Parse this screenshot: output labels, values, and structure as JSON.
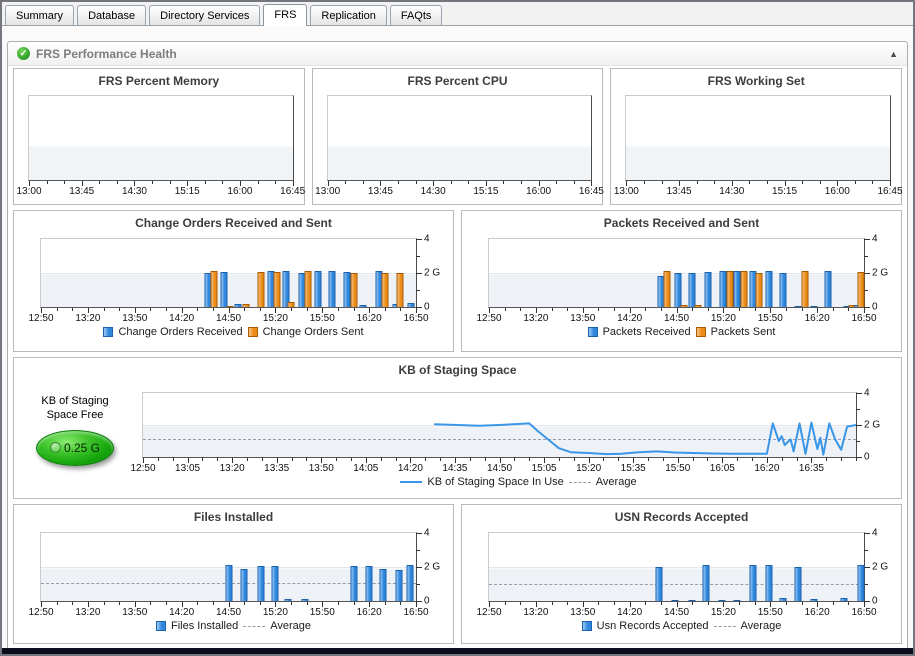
{
  "tabs": [
    {
      "label": "Summary",
      "active": false
    },
    {
      "label": "Database",
      "active": false
    },
    {
      "label": "Directory Services",
      "active": false
    },
    {
      "label": "FRS",
      "active": true
    },
    {
      "label": "Replication",
      "active": false
    },
    {
      "label": "FAQts",
      "active": false
    }
  ],
  "panel": {
    "title": "FRS Performance Health",
    "health_glyph": "✓",
    "collapse_glyph": "▲"
  },
  "staging_gauge": {
    "label_line1": "KB of Staging",
    "label_line2": "Space Free",
    "value": "0.25 G"
  },
  "colors": {
    "bar_blue": "#2e86dd",
    "bar_blue_light": "#9ccaf6",
    "bar_blue_border": "#1b61ae",
    "bar_orange": "#ec8b17",
    "bar_orange_light": "#f6c385",
    "bar_orange_border": "#a85a00",
    "line_blue": "#3a96e8",
    "average_gray": "#9a9aaa"
  },
  "chart_data": [
    {
      "type": "line",
      "title": "FRS Percent Memory",
      "no_data": true,
      "x_start": "13:00",
      "x_end": "16:45",
      "x_minor_step": 15,
      "x_labels": [
        "13:00",
        "13:45",
        "14:30",
        "15:15",
        "16:00",
        "16:45"
      ],
      "series": [],
      "points": []
    },
    {
      "type": "line",
      "title": "FRS Percent CPU",
      "no_data": true,
      "x_start": "13:00",
      "x_end": "16:45",
      "x_minor_step": 15,
      "x_labels": [
        "13:00",
        "13:45",
        "14:30",
        "15:15",
        "16:00",
        "16:45"
      ],
      "series": [],
      "points": []
    },
    {
      "type": "line",
      "title": "FRS Working Set",
      "no_data": true,
      "x_start": "13:00",
      "x_end": "16:45",
      "x_minor_step": 15,
      "x_labels": [
        "13:00",
        "13:45",
        "14:30",
        "15:15",
        "16:00",
        "16:45"
      ],
      "series": [],
      "points": []
    },
    {
      "type": "bar",
      "title": "Change Orders Received and Sent",
      "x_start": "12:50",
      "x_end": "16:50",
      "x_minor_step": 10,
      "x_labels": [
        "12:50",
        "13:20",
        "13:50",
        "14:20",
        "14:50",
        "15:20",
        "15:50",
        "16:20",
        "16:50"
      ],
      "ylim": [
        0,
        4
      ],
      "y_labels": [
        {
          "v": 4,
          "t": "4"
        },
        {
          "v": 2,
          "t": "2 G"
        },
        {
          "v": 0,
          "t": "0"
        }
      ],
      "series": [
        {
          "label": "Change Orders Received",
          "fill": "#2e86dd",
          "fill_light": "#9ccaf6",
          "border": "#1b61ae"
        },
        {
          "label": "Change Orders Sent",
          "fill": "#ec8b17",
          "fill_light": "#f6c385",
          "border": "#a85a00"
        }
      ],
      "bars": [
        [
          "14:37",
          0,
          2.0
        ],
        [
          "14:41",
          1,
          2.1
        ],
        [
          "14:47",
          0,
          2.05
        ],
        [
          "14:51",
          1,
          0.07
        ],
        [
          "14:56",
          0,
          0.15
        ],
        [
          "15:01",
          1,
          0.15
        ],
        [
          "15:11",
          1,
          2.05
        ],
        [
          "15:17",
          0,
          2.1
        ],
        [
          "15:21",
          1,
          2.05
        ],
        [
          "15:27",
          0,
          2.1
        ],
        [
          "15:30",
          1,
          0.3
        ],
        [
          "15:37",
          0,
          2.0
        ],
        [
          "15:41",
          1,
          2.1
        ],
        [
          "15:47",
          0,
          2.1
        ],
        [
          "15:56",
          0,
          2.1
        ],
        [
          "16:06",
          0,
          2.05
        ],
        [
          "16:10",
          1,
          2.0
        ],
        [
          "16:16",
          0,
          0.1
        ],
        [
          "16:26",
          0,
          2.1
        ],
        [
          "16:30",
          1,
          2.0
        ],
        [
          "16:37",
          0,
          0.15
        ],
        [
          "16:40",
          1,
          2.0
        ],
        [
          "16:47",
          0,
          0.25
        ]
      ]
    },
    {
      "type": "bar",
      "title": "Packets Received and Sent",
      "x_start": "12:50",
      "x_end": "16:50",
      "x_minor_step": 10,
      "x_labels": [
        "12:50",
        "13:20",
        "13:50",
        "14:20",
        "14:50",
        "15:20",
        "15:50",
        "16:20",
        "16:50"
      ],
      "ylim": [
        0,
        4
      ],
      "y_labels": [
        {
          "v": 4,
          "t": "4"
        },
        {
          "v": 2,
          "t": "2 G"
        },
        {
          "v": 0,
          "t": "0"
        }
      ],
      "series": [
        {
          "label": "Packets Received",
          "fill": "#2e86dd",
          "fill_light": "#9ccaf6",
          "border": "#1b61ae"
        },
        {
          "label": "Packets Sent",
          "fill": "#ec8b17",
          "fill_light": "#f6c385",
          "border": "#a85a00"
        }
      ],
      "bars": [
        [
          "14:40",
          0,
          1.85
        ],
        [
          "14:44",
          1,
          2.1
        ],
        [
          "14:51",
          0,
          2.0
        ],
        [
          "14:55",
          1,
          0.12
        ],
        [
          "15:00",
          0,
          2.0
        ],
        [
          "15:04",
          1,
          0.12
        ],
        [
          "15:10",
          0,
          2.05
        ],
        [
          "15:20",
          0,
          2.1
        ],
        [
          "15:24",
          1,
          2.1
        ],
        [
          "15:29",
          0,
          2.1
        ],
        [
          "15:33",
          1,
          2.1
        ],
        [
          "15:39",
          0,
          2.1
        ],
        [
          "15:43",
          1,
          2.0
        ],
        [
          "15:49",
          0,
          2.1
        ],
        [
          "15:58",
          0,
          2.0
        ],
        [
          "16:08",
          0,
          0.07
        ],
        [
          "16:12",
          1,
          2.1
        ],
        [
          "16:18",
          0,
          0.07
        ],
        [
          "16:27",
          0,
          2.1
        ],
        [
          "16:39",
          0,
          0.05
        ],
        [
          "16:42",
          1,
          0.1
        ],
        [
          "16:46",
          0,
          0.12
        ],
        [
          "16:48",
          1,
          2.05
        ]
      ]
    },
    {
      "type": "line",
      "title": "KB of Staging Space",
      "x_start": "12:50",
      "x_end": "16:50",
      "x_minor_step": 5,
      "x_labels": [
        "12:50",
        "13:05",
        "13:20",
        "13:35",
        "13:50",
        "14:05",
        "14:20",
        "14:35",
        "14:50",
        "15:05",
        "15:20",
        "15:35",
        "15:50",
        "16:05",
        "16:20",
        "16:35"
      ],
      "ylim": [
        0,
        4
      ],
      "y_labels": [
        {
          "v": 4,
          "t": "4"
        },
        {
          "v": 2,
          "t": "2 G"
        },
        {
          "v": 0,
          "t": "0"
        }
      ],
      "series": [
        {
          "label": "KB of Staging Space In Use",
          "stroke": "#3a96e8"
        }
      ],
      "average": 1.1,
      "average_label": "Average",
      "points": [
        [
          "14:28",
          2.05
        ],
        [
          "14:36",
          2.0
        ],
        [
          "14:43",
          1.95
        ],
        [
          "14:50",
          2.0
        ],
        [
          "15:00",
          2.1
        ],
        [
          "15:03",
          1.6
        ],
        [
          "15:07",
          1.0
        ],
        [
          "15:10",
          0.55
        ],
        [
          "15:14",
          0.3
        ],
        [
          "15:20",
          0.25
        ],
        [
          "15:26",
          0.18
        ],
        [
          "15:31",
          0.2
        ],
        [
          "15:37",
          0.3
        ],
        [
          "15:43",
          0.35
        ],
        [
          "15:49",
          0.28
        ],
        [
          "15:55",
          0.25
        ],
        [
          "16:02",
          0.22
        ],
        [
          "16:09",
          0.2
        ],
        [
          "16:15",
          0.2
        ],
        [
          "16:20",
          0.2
        ],
        [
          "16:22",
          2.1
        ],
        [
          "16:24",
          1.0
        ],
        [
          "16:25",
          1.3
        ],
        [
          "16:26",
          0.75
        ],
        [
          "16:28",
          1.1
        ],
        [
          "16:29",
          0.35
        ],
        [
          "16:31",
          2.1
        ],
        [
          "16:33",
          0.2
        ],
        [
          "16:35",
          2.15
        ],
        [
          "16:37",
          0.5
        ],
        [
          "16:38",
          1.2
        ],
        [
          "16:39",
          0.15
        ],
        [
          "16:41",
          2.1
        ],
        [
          "16:43",
          1.1
        ],
        [
          "16:45",
          0.45
        ],
        [
          "16:47",
          1.9
        ],
        [
          "16:50",
          2.0
        ]
      ]
    },
    {
      "type": "bar",
      "title": "Files Installed",
      "x_start": "12:50",
      "x_end": "16:50",
      "x_minor_step": 10,
      "x_labels": [
        "12:50",
        "13:20",
        "13:50",
        "14:20",
        "14:50",
        "15:20",
        "15:50",
        "16:20",
        "16:50"
      ],
      "ylim": [
        0,
        4
      ],
      "y_labels": [
        {
          "v": 4,
          "t": "4"
        },
        {
          "v": 2,
          "t": "2 G"
        },
        {
          "v": 0,
          "t": "0"
        }
      ],
      "series": [
        {
          "label": "Files Installed",
          "fill": "#2e86dd",
          "fill_light": "#9ccaf6",
          "border": "#1b61ae"
        }
      ],
      "average": 1.05,
      "average_label": "Average",
      "bars": [
        [
          "14:50",
          0,
          2.1
        ],
        [
          "15:00",
          0,
          1.9
        ],
        [
          "15:11",
          0,
          2.05
        ],
        [
          "15:20",
          0,
          2.05
        ],
        [
          "15:28",
          0,
          0.1
        ],
        [
          "15:39",
          0,
          0.1
        ],
        [
          "16:10",
          0,
          2.05
        ],
        [
          "16:20",
          0,
          2.05
        ],
        [
          "16:29",
          0,
          1.9
        ],
        [
          "16:39",
          0,
          1.8
        ],
        [
          "16:46",
          0,
          2.1
        ]
      ]
    },
    {
      "type": "bar",
      "title": "USN Records Accepted",
      "x_start": "12:50",
      "x_end": "16:50",
      "x_minor_step": 10,
      "x_labels": [
        "12:50",
        "13:20",
        "13:50",
        "14:20",
        "14:50",
        "15:20",
        "15:50",
        "16:20",
        "16:50"
      ],
      "ylim": [
        0,
        4
      ],
      "y_labels": [
        {
          "v": 4,
          "t": "4"
        },
        {
          "v": 2,
          "t": "2 G"
        },
        {
          "v": 0,
          "t": "0"
        }
      ],
      "series": [
        {
          "label": "Usn Records Accepted",
          "fill": "#2e86dd",
          "fill_light": "#9ccaf6",
          "border": "#1b61ae"
        }
      ],
      "average": 1.0,
      "average_label": "Average",
      "bars": [
        [
          "14:39",
          0,
          2.0
        ],
        [
          "14:49",
          0,
          0.07
        ],
        [
          "15:00",
          0,
          0.07
        ],
        [
          "15:09",
          0,
          2.1
        ],
        [
          "15:19",
          0,
          0.07
        ],
        [
          "15:29",
          0,
          0.07
        ],
        [
          "15:39",
          0,
          2.1
        ],
        [
          "15:49",
          0,
          2.1
        ],
        [
          "15:58",
          0,
          0.15
        ],
        [
          "16:08",
          0,
          2.0
        ],
        [
          "16:18",
          0,
          0.1
        ],
        [
          "16:37",
          0,
          0.15
        ],
        [
          "16:48",
          0,
          2.1
        ]
      ]
    }
  ]
}
